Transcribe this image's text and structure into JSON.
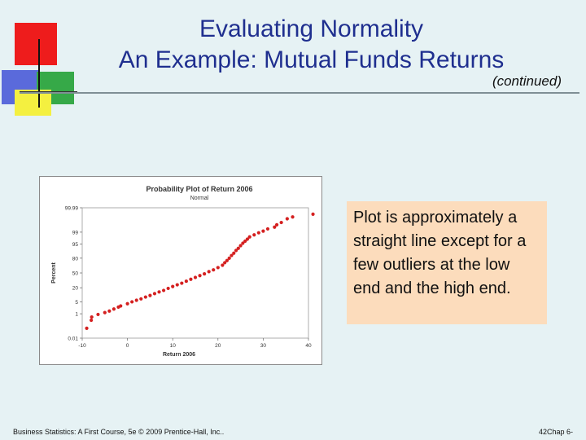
{
  "slide": {
    "title_line1": "Evaluating Normality",
    "title_line2": "An Example:  Mutual Funds Returns",
    "subtitle": "(continued)",
    "note": "Plot is approximately a straight line except for a few outliers at the low end and the high end.",
    "footer_left": "Business Statistics: A First Course, 5e © 2009 Prentice-Hall, Inc..",
    "footer_right": "42Chap 6-"
  },
  "chart_data": {
    "type": "scatter",
    "title": "Probability Plot of Return 2006",
    "subtitle": "Normal",
    "xlabel": "Return 2006",
    "ylabel": "Percent",
    "xlim": [
      -10,
      40
    ],
    "x_ticks": [
      "-10",
      "0",
      "10",
      "20",
      "30",
      "40"
    ],
    "y_ticks": [
      "0.01",
      "1",
      "5",
      "20",
      "50",
      "80",
      "95",
      "99",
      "99.99"
    ],
    "color": "#d42020",
    "series": [
      {
        "points": [
          {
            "x": -9,
            "y": 0.08
          },
          {
            "x": -8,
            "y": 0.35
          },
          {
            "x": -7.9,
            "y": 0.6
          },
          {
            "x": -6.5,
            "y": 0.9
          },
          {
            "x": -5,
            "y": 1.2
          },
          {
            "x": -4,
            "y": 1.5
          },
          {
            "x": -3,
            "y": 2
          },
          {
            "x": -2,
            "y": 2.6
          },
          {
            "x": -1.5,
            "y": 3
          },
          {
            "x": 0,
            "y": 4
          },
          {
            "x": 1,
            "y": 5
          },
          {
            "x": 2,
            "y": 6
          },
          {
            "x": 3,
            "y": 7
          },
          {
            "x": 4,
            "y": 8.5
          },
          {
            "x": 5,
            "y": 10
          },
          {
            "x": 6,
            "y": 12
          },
          {
            "x": 7,
            "y": 14
          },
          {
            "x": 8,
            "y": 16
          },
          {
            "x": 9,
            "y": 19
          },
          {
            "x": 10,
            "y": 22
          },
          {
            "x": 11,
            "y": 25
          },
          {
            "x": 12,
            "y": 28
          },
          {
            "x": 13,
            "y": 32
          },
          {
            "x": 14,
            "y": 36
          },
          {
            "x": 15,
            "y": 40
          },
          {
            "x": 16,
            "y": 44
          },
          {
            "x": 17,
            "y": 48
          },
          {
            "x": 18,
            "y": 53
          },
          {
            "x": 19,
            "y": 57
          },
          {
            "x": 20,
            "y": 62
          },
          {
            "x": 21,
            "y": 67
          },
          {
            "x": 21.5,
            "y": 72
          },
          {
            "x": 22,
            "y": 76
          },
          {
            "x": 22.5,
            "y": 80
          },
          {
            "x": 23,
            "y": 84
          },
          {
            "x": 23.5,
            "y": 87
          },
          {
            "x": 24,
            "y": 90
          },
          {
            "x": 24.5,
            "y": 92
          },
          {
            "x": 25,
            "y": 94
          },
          {
            "x": 25.5,
            "y": 95.5
          },
          {
            "x": 26,
            "y": 96.5
          },
          {
            "x": 26.5,
            "y": 97.3
          },
          {
            "x": 27,
            "y": 98
          },
          {
            "x": 28,
            "y": 98.5
          },
          {
            "x": 29,
            "y": 98.9
          },
          {
            "x": 30,
            "y": 99.15
          },
          {
            "x": 31,
            "y": 99.4
          },
          {
            "x": 32.5,
            "y": 99.55
          },
          {
            "x": 33,
            "y": 99.7
          },
          {
            "x": 34,
            "y": 99.8
          },
          {
            "x": 35.3,
            "y": 99.9
          },
          {
            "x": 36.5,
            "y": 99.93
          },
          {
            "x": 41,
            "y": 99.96
          }
        ]
      }
    ]
  }
}
